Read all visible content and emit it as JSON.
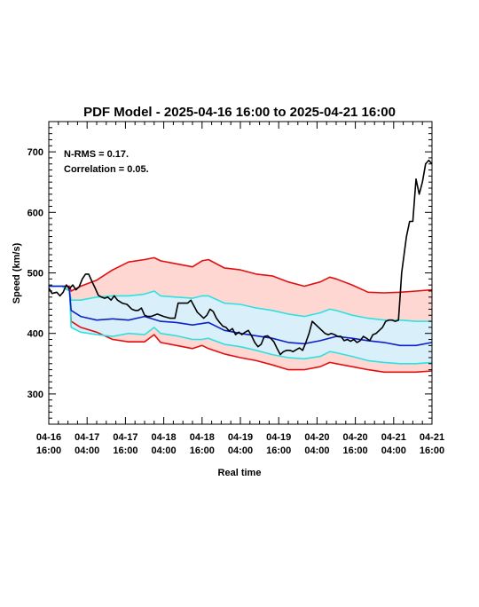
{
  "chart_data": {
    "type": "line",
    "title": "PDF Model - 2025-04-16 16:00 to 2025-04-21 16:00",
    "xlabel": "Real time",
    "ylabel": "Speed (km/s)",
    "xlim": [
      0,
      120
    ],
    "ylim": [
      250,
      750
    ],
    "x_unit": "hours since 2025-04-16 16:00",
    "x_ticks": [
      {
        "x": 0,
        "line1": "04-16",
        "line2": "16:00"
      },
      {
        "x": 12,
        "line1": "04-17",
        "line2": "04:00"
      },
      {
        "x": 24,
        "line1": "04-17",
        "line2": "16:00"
      },
      {
        "x": 36,
        "line1": "04-18",
        "line2": "04:00"
      },
      {
        "x": 48,
        "line1": "04-18",
        "line2": "16:00"
      },
      {
        "x": 60,
        "line1": "04-19",
        "line2": "04:00"
      },
      {
        "x": 72,
        "line1": "04-19",
        "line2": "16:00"
      },
      {
        "x": 84,
        "line1": "04-20",
        "line2": "04:00"
      },
      {
        "x": 96,
        "line1": "04-20",
        "line2": "16:00"
      },
      {
        "x": 108,
        "line1": "04-21",
        "line2": "04:00"
      },
      {
        "x": 120,
        "line1": "04-21",
        "line2": "16:00"
      }
    ],
    "y_ticks": [
      300,
      400,
      500,
      600,
      700
    ],
    "annotations": [
      "N-RMS = 0.17.",
      "Correlation = 0.05."
    ],
    "colors": {
      "outer_band_fill": "#ffd7d2",
      "inner_band_fill": "#d9f0fb",
      "outer_line": "#e01010",
      "inner_line": "#30e0e0",
      "median_line": "#1020c8",
      "observed_line": "#000000"
    },
    "bands": {
      "x": [
        0,
        4,
        6.5,
        7,
        10,
        15,
        20,
        25,
        30,
        33,
        35,
        40,
        45,
        48,
        50,
        55,
        60,
        65,
        70,
        75,
        80,
        85,
        88,
        90,
        95,
        100,
        105,
        110,
        115,
        120
      ],
      "upper_outer": [
        478,
        478,
        478,
        470,
        478,
        488,
        505,
        518,
        522,
        525,
        520,
        515,
        510,
        520,
        522,
        508,
        505,
        498,
        495,
        485,
        478,
        485,
        493,
        490,
        480,
        468,
        467,
        468,
        470,
        472
      ],
      "upper_inner": [
        478,
        478,
        470,
        455,
        455,
        460,
        462,
        462,
        465,
        470,
        462,
        460,
        458,
        462,
        462,
        450,
        448,
        442,
        438,
        432,
        428,
        434,
        440,
        438,
        430,
        425,
        422,
        422,
        420,
        420
      ],
      "lower_inner": [
        478,
        478,
        470,
        410,
        402,
        398,
        395,
        400,
        398,
        410,
        400,
        396,
        390,
        390,
        392,
        382,
        378,
        372,
        365,
        360,
        358,
        362,
        370,
        368,
        362,
        355,
        352,
        350,
        350,
        352
      ],
      "lower_outer": [
        478,
        478,
        470,
        420,
        410,
        402,
        390,
        386,
        386,
        398,
        385,
        380,
        375,
        380,
        375,
        366,
        360,
        355,
        348,
        340,
        340,
        345,
        352,
        350,
        345,
        340,
        336,
        336,
        336,
        338
      ]
    },
    "series": [
      {
        "name": "median",
        "x": [
          0,
          6,
          6.5,
          7,
          10,
          15,
          20,
          25,
          30,
          35,
          40,
          45,
          50,
          55,
          60,
          65,
          70,
          75,
          80,
          85,
          90,
          95,
          100,
          105,
          110,
          115,
          120
        ],
        "values": [
          478,
          478,
          470,
          438,
          428,
          422,
          424,
          422,
          428,
          420,
          418,
          414,
          418,
          405,
          400,
          396,
          392,
          385,
          383,
          388,
          395,
          392,
          388,
          385,
          380,
          380,
          385
        ]
      },
      {
        "name": "observed",
        "x": [
          0,
          1,
          2.5,
          3.5,
          4.5,
          5.5,
          6.5,
          7.5,
          8.5,
          9.5,
          10.5,
          11.5,
          12.5,
          13.5,
          14.5,
          15.5,
          16.5,
          17.5,
          18.5,
          19.5,
          20.5,
          21.5,
          23,
          24.5,
          26,
          27,
          28,
          29,
          30,
          31,
          32,
          34,
          36,
          38,
          39.5,
          40.5,
          42,
          43.5,
          44.5,
          45.5,
          46.5,
          47.5,
          48.5,
          49.5,
          50.5,
          51.5,
          52.5,
          53.5,
          54.5,
          55.5,
          56.5,
          57.5,
          58.5,
          59.5,
          60.5,
          61.5,
          62.5,
          63.5,
          64.5,
          65.5,
          66.5,
          67.5,
          68.5,
          69.5,
          70.5,
          71.5,
          72.5,
          73.5,
          74.5,
          75.5,
          76.5,
          77.5,
          78.5,
          79.5,
          80.5,
          81.5,
          82.5,
          83.5,
          84.5,
          85.5,
          86.5,
          87.5,
          88.5,
          89.5,
          90.5,
          91.5,
          92.5,
          93.5,
          94.5,
          95.5,
          96.5,
          97.5,
          98.5,
          99.5,
          100.5,
          101.5,
          102.5,
          103.5,
          104.5,
          105.5,
          106.5,
          107.5,
          108.5,
          109.5,
          110,
          110.5,
          111,
          112,
          113,
          114,
          115,
          116,
          117,
          118,
          119,
          120
        ],
        "values": [
          475,
          466,
          468,
          462,
          468,
          480,
          474,
          480,
          472,
          477,
          490,
          498,
          498,
          486,
          475,
          463,
          460,
          458,
          460,
          455,
          462,
          455,
          450,
          448,
          440,
          438,
          438,
          442,
          430,
          428,
          428,
          432,
          428,
          425,
          425,
          450,
          450,
          450,
          455,
          445,
          435,
          430,
          425,
          430,
          440,
          436,
          425,
          418,
          412,
          410,
          404,
          408,
          398,
          402,
          398,
          402,
          405,
          396,
          385,
          378,
          382,
          395,
          396,
          392,
          386,
          375,
          365,
          370,
          372,
          372,
          370,
          373,
          376,
          372,
          385,
          400,
          420,
          415,
          410,
          405,
          400,
          398,
          400,
          398,
          395,
          395,
          388,
          390,
          387,
          390,
          385,
          388,
          395,
          392,
          388,
          398,
          400,
          405,
          410,
          420,
          422,
          422,
          420,
          422,
          460,
          500,
          520,
          560,
          585,
          585,
          655,
          630,
          650,
          680,
          686,
          680
        ]
      }
    ]
  }
}
